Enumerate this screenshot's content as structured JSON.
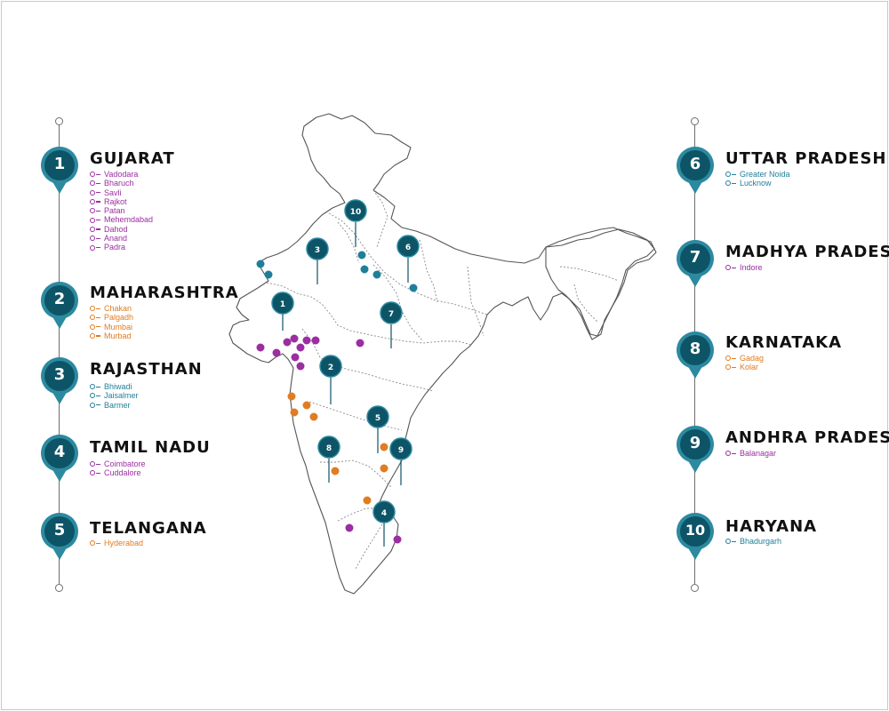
{
  "colors": {
    "teal": "#0d5467",
    "ring": "#2c8aa0",
    "purple": "#9b2ea1",
    "orange": "#e07c22",
    "blue": "#1f7f9a"
  },
  "icons": {
    "location": "map-pin-icon",
    "marker": "numbered-marker-icon"
  },
  "states": [
    {
      "num": "1",
      "name": "GUJARAT",
      "color": "purple",
      "cities": [
        "Vadodara",
        "Bharuch",
        "Savli",
        "Rajkot",
        "Patan",
        "Mehemdabad",
        "Dahod",
        "Anand",
        "Padra"
      ]
    },
    {
      "num": "2",
      "name": "MAHARASHTRA",
      "color": "orange",
      "cities": [
        "Chakan",
        "Palgadh",
        "Mumbai",
        "Murbad"
      ]
    },
    {
      "num": "3",
      "name": "RAJASTHAN",
      "color": "blue",
      "cities": [
        "Bhiwadi",
        "Jaisalmer",
        "Barmer"
      ]
    },
    {
      "num": "4",
      "name": "TAMIL NADU",
      "color": "purple",
      "cities": [
        "Coimbatore",
        "Cuddalore"
      ]
    },
    {
      "num": "5",
      "name": "TELANGANA",
      "color": "orange",
      "cities": [
        "Hyderabad"
      ]
    },
    {
      "num": "6",
      "name": "UTTAR PRADESH",
      "color": "blue",
      "cities": [
        "Greater Noida",
        "Lucknow"
      ]
    },
    {
      "num": "7",
      "name": "MADHYA PRADESH",
      "color": "purple",
      "cities": [
        "Indore"
      ]
    },
    {
      "num": "8",
      "name": "KARNATAKA",
      "color": "orange",
      "cities": [
        "Gadag",
        "Kolar"
      ]
    },
    {
      "num": "9",
      "name": "ANDHRA PRADESH",
      "color": "purple",
      "cities": [
        "Balanagar"
      ]
    },
    {
      "num": "10",
      "name": "HARYANA",
      "color": "blue",
      "cities": [
        "Bhadurgarh"
      ]
    }
  ]
}
